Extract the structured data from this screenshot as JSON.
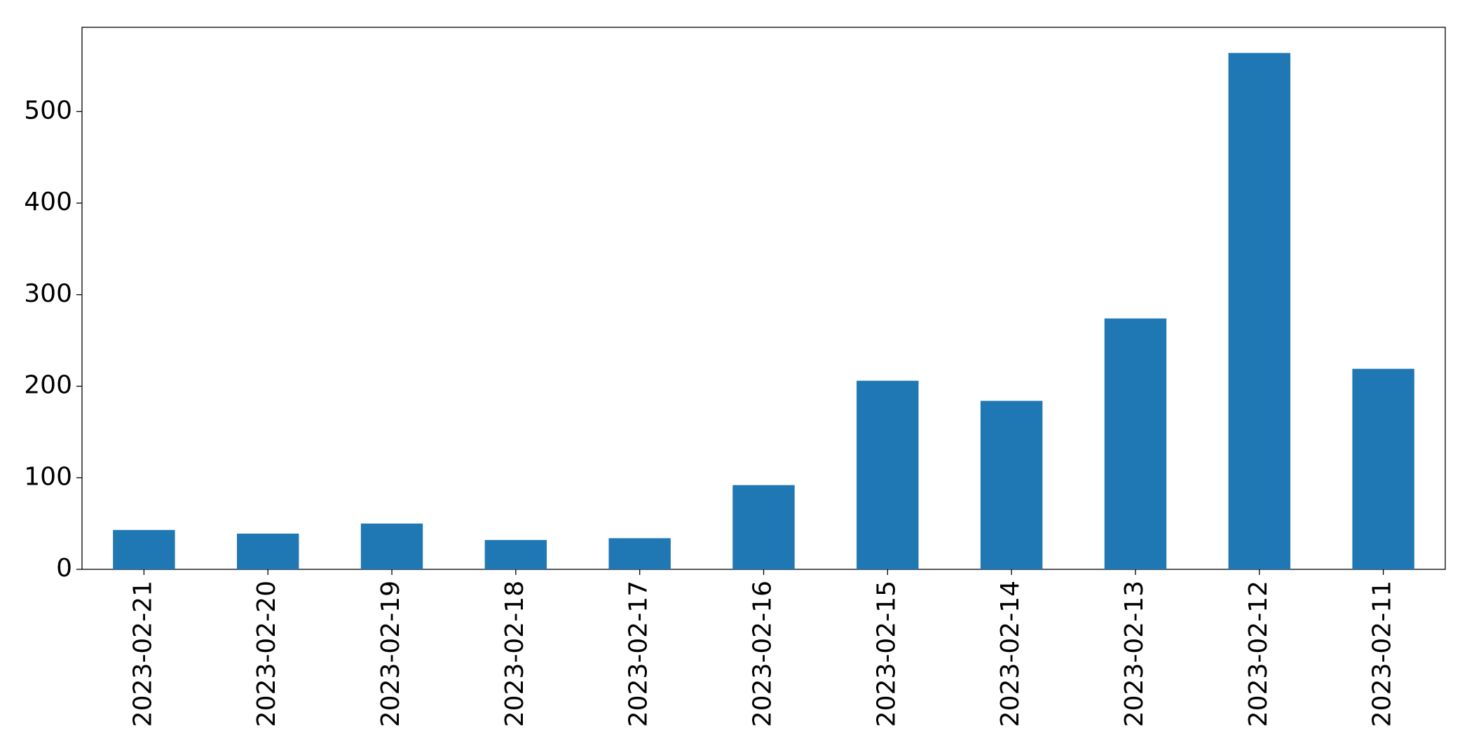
{
  "chart_data": {
    "type": "bar",
    "categories": [
      "2023-02-21",
      "2023-02-20",
      "2023-02-19",
      "2023-02-18",
      "2023-02-17",
      "2023-02-16",
      "2023-02-15",
      "2023-02-14",
      "2023-02-13",
      "2023-02-12",
      "2023-02-11"
    ],
    "values": [
      43,
      39,
      50,
      32,
      34,
      92,
      206,
      184,
      274,
      564,
      219
    ],
    "color": "#1f77b4",
    "ylim": [
      0,
      592
    ],
    "yticks": [
      0,
      100,
      200,
      300,
      400,
      500
    ],
    "grid": false
  }
}
